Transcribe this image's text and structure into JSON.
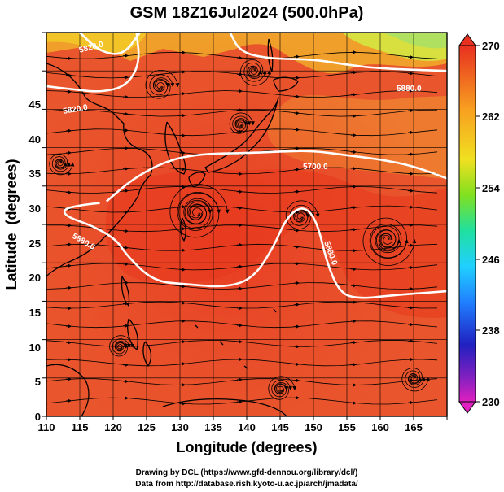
{
  "title": "GSM 18Z16Jul2024 (500.0hPa)",
  "footer": {
    "line1": "Drawing by DCL (https://www.gfd-dennou.org/library/dcl/)",
    "line2": "Data from http://database.rish.kyoto-u.ac.jp/arch/jmadata/"
  },
  "chart_data": {
    "type": "heatmap",
    "title": "GSM 18Z16Jul2024 (500.0hPa)",
    "xlabel": "Longitude (degrees)",
    "ylabel": "Latitude  (degrees)",
    "xlim": [
      110,
      170
    ],
    "ylim": [
      0,
      50
    ],
    "x_ticks": [
      "110",
      "115",
      "120",
      "125",
      "130",
      "135",
      "140",
      "145",
      "150",
      "155",
      "160",
      "165"
    ],
    "y_ticks": [
      "0",
      "5",
      "10",
      "15",
      "20",
      "25",
      "30",
      "35",
      "40",
      "45"
    ],
    "grid": true,
    "colorbar": {
      "ticks": [
        "270",
        "262",
        "254",
        "246",
        "238",
        "230"
      ],
      "range": [
        230,
        270
      ],
      "colors": [
        "#e020c0",
        "#8020c0",
        "#2020c0",
        "#2080ff",
        "#20d0ff",
        "#20e0a0",
        "#40e020",
        "#c0e020",
        "#f0e020",
        "#f8a020",
        "#f06020",
        "#e83020"
      ]
    },
    "contours": [
      {
        "label": "5820.0",
        "level": 5820
      },
      {
        "label": "5880.0",
        "level": 5880
      },
      {
        "label": "5700.0",
        "level": 5700
      },
      {
        "label": "5820.0",
        "level": 5820
      },
      {
        "label": "5880.0",
        "level": 5880
      },
      {
        "label": "5880.0",
        "level": 5880
      }
    ],
    "contour_lines": [
      {
        "level": 5820,
        "path": [
          [
            110,
            43
          ],
          [
            114,
            42.6
          ],
          [
            118,
            42.2
          ],
          [
            122,
            43
          ],
          [
            124,
            46
          ],
          [
            123.5,
            50
          ]
        ]
      },
      {
        "level": 5820,
        "path": [
          [
            137.5,
            50
          ],
          [
            139,
            47.5
          ],
          [
            143,
            46.6
          ],
          [
            150,
            46.5
          ],
          [
            155,
            45.8
          ],
          [
            160,
            45.3
          ],
          [
            170,
            45
          ]
        ]
      },
      {
        "level": 5820,
        "path": [
          [
            115,
            50
          ],
          [
            118,
            47.5
          ],
          [
            121.5,
            47
          ],
          [
            124,
            50
          ]
        ]
      },
      {
        "level": 5880,
        "path": [
          [
            119,
            28
          ],
          [
            123,
            31
          ],
          [
            128,
            33.3
          ],
          [
            133,
            34.2
          ],
          [
            140,
            34.3
          ],
          [
            145,
            34.5
          ],
          [
            150,
            34.6
          ],
          [
            155,
            34
          ],
          [
            160,
            33.5
          ],
          [
            165,
            32.6
          ],
          [
            170,
            31
          ]
        ]
      },
      {
        "level": 5880,
        "path": [
          [
            118,
            27.8
          ],
          [
            115,
            27.5
          ],
          [
            112.5,
            27
          ],
          [
            113,
            26
          ],
          [
            117,
            24.8
          ],
          [
            120.5,
            23
          ],
          [
            122,
            21
          ],
          [
            126,
            17.6
          ],
          [
            131,
            17.2
          ],
          [
            137,
            16.8
          ],
          [
            141,
            18
          ],
          [
            144,
            22
          ],
          [
            146,
            26
          ],
          [
            148.5,
            27.5
          ],
          [
            150.5,
            25.5
          ],
          [
            152,
            20
          ],
          [
            154,
            16
          ],
          [
            157,
            15.3
          ],
          [
            162,
            15.8
          ],
          [
            170,
            16.3
          ]
        ]
      }
    ]
  }
}
